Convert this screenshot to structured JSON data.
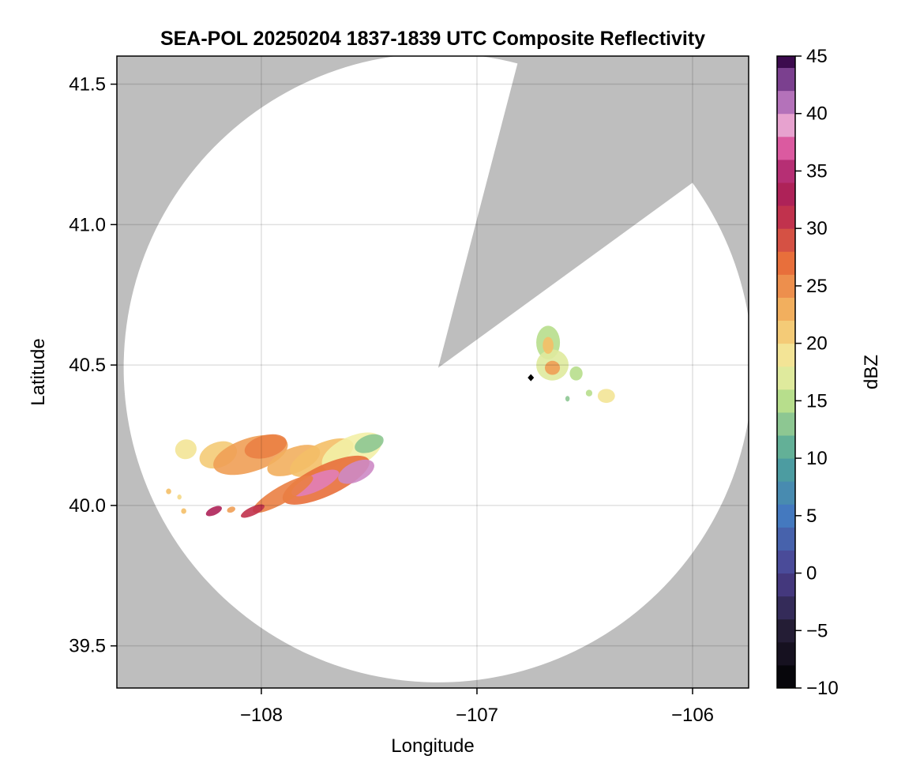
{
  "chart_data": {
    "type": "heatmap",
    "title": "SEA-POL 20250204 1837-1839 UTC Composite Reflectivity",
    "xlabel": "Longitude",
    "ylabel": "Latitude",
    "xlim": [
      -108.67,
      -105.74
    ],
    "ylim": [
      39.35,
      41.6
    ],
    "xticks": [
      {
        "value": -108,
        "label": "−108"
      },
      {
        "value": -107,
        "label": "−107"
      },
      {
        "value": -106,
        "label": "−106"
      }
    ],
    "yticks": [
      {
        "value": 39.5,
        "label": "39.5"
      },
      {
        "value": 40.0,
        "label": "40.0"
      },
      {
        "value": 40.5,
        "label": "40.5"
      },
      {
        "value": 41.0,
        "label": "41.0"
      },
      {
        "value": 41.5,
        "label": "41.5"
      }
    ],
    "grid": true,
    "radar": {
      "center": {
        "lon": -107.18,
        "lat": 40.49
      },
      "range_lat_deg": 1.12,
      "blocked_sector_edges": [
        {
          "lon": -106.83,
          "lat": 41.52
        },
        {
          "lon": -106.07,
          "lat": 41.11
        }
      ]
    },
    "marker": {
      "lon": -106.75,
      "lat": 40.455,
      "shape": "diamond"
    },
    "colorbar": {
      "label": "dBZ",
      "range": [
        -10,
        45
      ],
      "step": 2,
      "ticks": [
        {
          "value": -10,
          "label": "−10"
        },
        {
          "value": -5,
          "label": "−5"
        },
        {
          "value": 0,
          "label": "0"
        },
        {
          "value": 5,
          "label": "5"
        },
        {
          "value": 10,
          "label": "10"
        },
        {
          "value": 15,
          "label": "15"
        },
        {
          "value": 20,
          "label": "20"
        },
        {
          "value": 25,
          "label": "25"
        },
        {
          "value": 30,
          "label": "30"
        },
        {
          "value": 35,
          "label": "35"
        },
        {
          "value": 40,
          "label": "40"
        },
        {
          "value": 45,
          "label": "45"
        }
      ]
    },
    "echo_cells": [
      {
        "lon": -108.35,
        "lat": 40.2,
        "rx": 0.05,
        "ry": 0.035,
        "angle": -15,
        "dbz": 19
      },
      {
        "lon": -108.2,
        "lat": 40.18,
        "rx": 0.09,
        "ry": 0.045,
        "angle": -20,
        "dbz": 21
      },
      {
        "lon": -108.05,
        "lat": 40.18,
        "rx": 0.18,
        "ry": 0.06,
        "angle": -18,
        "dbz": 24
      },
      {
        "lon": -107.98,
        "lat": 40.21,
        "rx": 0.1,
        "ry": 0.04,
        "angle": -15,
        "dbz": 26
      },
      {
        "lon": -107.85,
        "lat": 40.16,
        "rx": 0.13,
        "ry": 0.045,
        "angle": -22,
        "dbz": 23
      },
      {
        "lon": -107.72,
        "lat": 40.17,
        "rx": 0.16,
        "ry": 0.05,
        "angle": -25,
        "dbz": 22
      },
      {
        "lon": -107.58,
        "lat": 40.19,
        "rx": 0.15,
        "ry": 0.055,
        "angle": -25,
        "dbz": 18
      },
      {
        "lon": -107.5,
        "lat": 40.22,
        "rx": 0.07,
        "ry": 0.03,
        "angle": -20,
        "dbz": 13
      },
      {
        "lon": -107.7,
        "lat": 40.09,
        "rx": 0.22,
        "ry": 0.055,
        "angle": -25,
        "dbz": 27
      },
      {
        "lon": -107.75,
        "lat": 40.08,
        "rx": 0.12,
        "ry": 0.03,
        "angle": -25,
        "dbz": 38
      },
      {
        "lon": -107.56,
        "lat": 40.12,
        "rx": 0.09,
        "ry": 0.035,
        "angle": -25,
        "dbz": 40
      },
      {
        "lon": -107.9,
        "lat": 40.04,
        "rx": 0.16,
        "ry": 0.03,
        "angle": -30,
        "dbz": 26
      },
      {
        "lon": -108.04,
        "lat": 39.98,
        "rx": 0.06,
        "ry": 0.015,
        "angle": -25,
        "dbz": 31
      },
      {
        "lon": -108.22,
        "lat": 39.98,
        "rx": 0.04,
        "ry": 0.014,
        "angle": -25,
        "dbz": 33
      },
      {
        "lon": -108.14,
        "lat": 39.985,
        "rx": 0.02,
        "ry": 0.01,
        "angle": -20,
        "dbz": 24
      },
      {
        "lon": -108.36,
        "lat": 39.98,
        "rx": 0.012,
        "ry": 0.01,
        "angle": 0,
        "dbz": 22
      },
      {
        "lon": -108.43,
        "lat": 40.05,
        "rx": 0.012,
        "ry": 0.01,
        "angle": 0,
        "dbz": 22
      },
      {
        "lon": -108.38,
        "lat": 40.03,
        "rx": 0.01,
        "ry": 0.009,
        "angle": 0,
        "dbz": 20
      },
      {
        "lon": -106.67,
        "lat": 40.58,
        "rx": 0.055,
        "ry": 0.06,
        "angle": 0,
        "dbz": 15
      },
      {
        "lon": -106.65,
        "lat": 40.5,
        "rx": 0.075,
        "ry": 0.055,
        "angle": -10,
        "dbz": 17
      },
      {
        "lon": -106.65,
        "lat": 40.49,
        "rx": 0.035,
        "ry": 0.025,
        "angle": 0,
        "dbz": 24
      },
      {
        "lon": -106.67,
        "lat": 40.57,
        "rx": 0.025,
        "ry": 0.03,
        "angle": 0,
        "dbz": 22
      },
      {
        "lon": -106.54,
        "lat": 40.47,
        "rx": 0.03,
        "ry": 0.025,
        "angle": 0,
        "dbz": 15
      },
      {
        "lon": -106.4,
        "lat": 40.39,
        "rx": 0.04,
        "ry": 0.025,
        "angle": 0,
        "dbz": 19
      },
      {
        "lon": -106.48,
        "lat": 40.4,
        "rx": 0.015,
        "ry": 0.012,
        "angle": 0,
        "dbz": 15
      },
      {
        "lon": -106.58,
        "lat": 40.38,
        "rx": 0.01,
        "ry": 0.01,
        "angle": 0,
        "dbz": 13
      }
    ]
  }
}
